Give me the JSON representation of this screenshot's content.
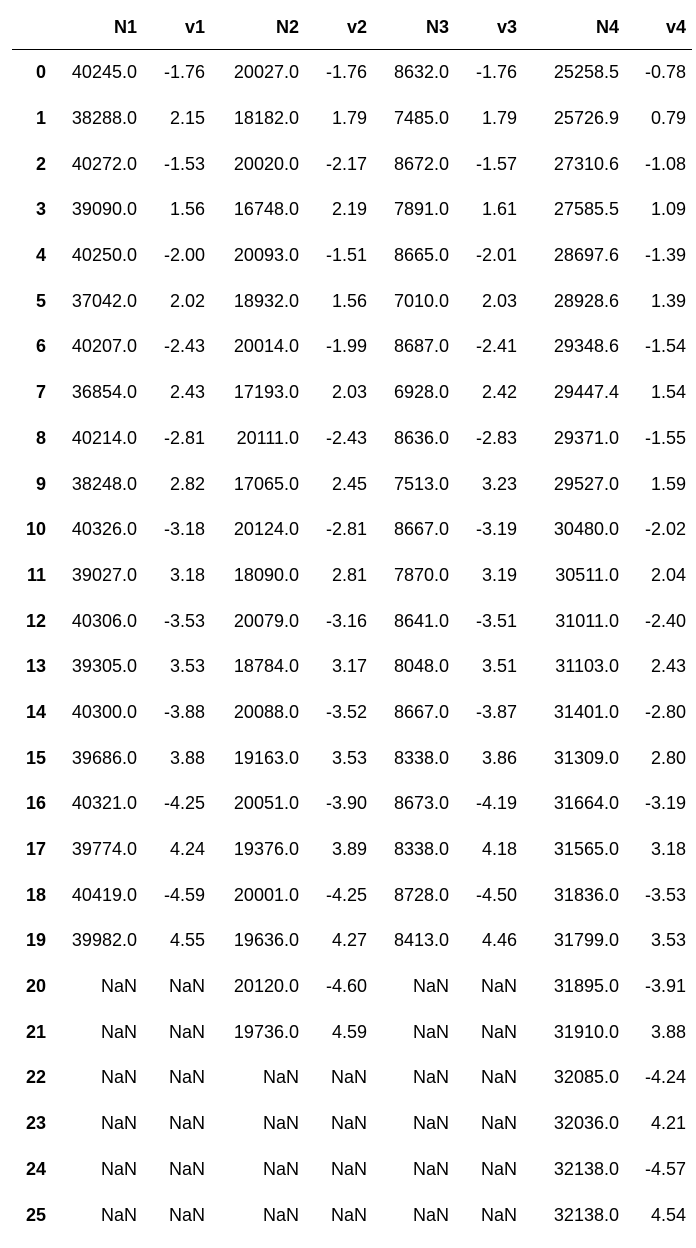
{
  "table": {
    "index_header": "",
    "columns": [
      "N1",
      "v1",
      "N2",
      "v2",
      "N3",
      "v3",
      "N4",
      "v4"
    ],
    "rows": [
      {
        "index": "0",
        "cells": [
          "40245.0",
          "-1.76",
          "20027.0",
          "-1.76",
          "8632.0",
          "-1.76",
          "25258.5",
          "-0.78"
        ]
      },
      {
        "index": "1",
        "cells": [
          "38288.0",
          "2.15",
          "18182.0",
          "1.79",
          "7485.0",
          "1.79",
          "25726.9",
          "0.79"
        ]
      },
      {
        "index": "2",
        "cells": [
          "40272.0",
          "-1.53",
          "20020.0",
          "-2.17",
          "8672.0",
          "-1.57",
          "27310.6",
          "-1.08"
        ]
      },
      {
        "index": "3",
        "cells": [
          "39090.0",
          "1.56",
          "16748.0",
          "2.19",
          "7891.0",
          "1.61",
          "27585.5",
          "1.09"
        ]
      },
      {
        "index": "4",
        "cells": [
          "40250.0",
          "-2.00",
          "20093.0",
          "-1.51",
          "8665.0",
          "-2.01",
          "28697.6",
          "-1.39"
        ]
      },
      {
        "index": "5",
        "cells": [
          "37042.0",
          "2.02",
          "18932.0",
          "1.56",
          "7010.0",
          "2.03",
          "28928.6",
          "1.39"
        ]
      },
      {
        "index": "6",
        "cells": [
          "40207.0",
          "-2.43",
          "20014.0",
          "-1.99",
          "8687.0",
          "-2.41",
          "29348.6",
          "-1.54"
        ]
      },
      {
        "index": "7",
        "cells": [
          "36854.0",
          "2.43",
          "17193.0",
          "2.03",
          "6928.0",
          "2.42",
          "29447.4",
          "1.54"
        ]
      },
      {
        "index": "8",
        "cells": [
          "40214.0",
          "-2.81",
          "20111.0",
          "-2.43",
          "8636.0",
          "-2.83",
          "29371.0",
          "-1.55"
        ]
      },
      {
        "index": "9",
        "cells": [
          "38248.0",
          "2.82",
          "17065.0",
          "2.45",
          "7513.0",
          "3.23",
          "29527.0",
          "1.59"
        ]
      },
      {
        "index": "10",
        "cells": [
          "40326.0",
          "-3.18",
          "20124.0",
          "-2.81",
          "8667.0",
          "-3.19",
          "30480.0",
          "-2.02"
        ]
      },
      {
        "index": "11",
        "cells": [
          "39027.0",
          "3.18",
          "18090.0",
          "2.81",
          "7870.0",
          "3.19",
          "30511.0",
          "2.04"
        ]
      },
      {
        "index": "12",
        "cells": [
          "40306.0",
          "-3.53",
          "20079.0",
          "-3.16",
          "8641.0",
          "-3.51",
          "31011.0",
          "-2.40"
        ]
      },
      {
        "index": "13",
        "cells": [
          "39305.0",
          "3.53",
          "18784.0",
          "3.17",
          "8048.0",
          "3.51",
          "31103.0",
          "2.43"
        ]
      },
      {
        "index": "14",
        "cells": [
          "40300.0",
          "-3.88",
          "20088.0",
          "-3.52",
          "8667.0",
          "-3.87",
          "31401.0",
          "-2.80"
        ]
      },
      {
        "index": "15",
        "cells": [
          "39686.0",
          "3.88",
          "19163.0",
          "3.53",
          "8338.0",
          "3.86",
          "31309.0",
          "2.80"
        ]
      },
      {
        "index": "16",
        "cells": [
          "40321.0",
          "-4.25",
          "20051.0",
          "-3.90",
          "8673.0",
          "-4.19",
          "31664.0",
          "-3.19"
        ]
      },
      {
        "index": "17",
        "cells": [
          "39774.0",
          "4.24",
          "19376.0",
          "3.89",
          "8338.0",
          "4.18",
          "31565.0",
          "3.18"
        ]
      },
      {
        "index": "18",
        "cells": [
          "40419.0",
          "-4.59",
          "20001.0",
          "-4.25",
          "8728.0",
          "-4.50",
          "31836.0",
          "-3.53"
        ]
      },
      {
        "index": "19",
        "cells": [
          "39982.0",
          "4.55",
          "19636.0",
          "4.27",
          "8413.0",
          "4.46",
          "31799.0",
          "3.53"
        ]
      },
      {
        "index": "20",
        "cells": [
          "NaN",
          "NaN",
          "20120.0",
          "-4.60",
          "NaN",
          "NaN",
          "31895.0",
          "-3.91"
        ]
      },
      {
        "index": "21",
        "cells": [
          "NaN",
          "NaN",
          "19736.0",
          "4.59",
          "NaN",
          "NaN",
          "31910.0",
          "3.88"
        ]
      },
      {
        "index": "22",
        "cells": [
          "NaN",
          "NaN",
          "NaN",
          "NaN",
          "NaN",
          "NaN",
          "32085.0",
          "-4.24"
        ]
      },
      {
        "index": "23",
        "cells": [
          "NaN",
          "NaN",
          "NaN",
          "NaN",
          "NaN",
          "NaN",
          "32036.0",
          "4.21"
        ]
      },
      {
        "index": "24",
        "cells": [
          "NaN",
          "NaN",
          "NaN",
          "NaN",
          "NaN",
          "NaN",
          "32138.0",
          "-4.57"
        ]
      },
      {
        "index": "25",
        "cells": [
          "NaN",
          "NaN",
          "NaN",
          "NaN",
          "NaN",
          "NaN",
          "32138.0",
          "4.54"
        ]
      }
    ]
  }
}
